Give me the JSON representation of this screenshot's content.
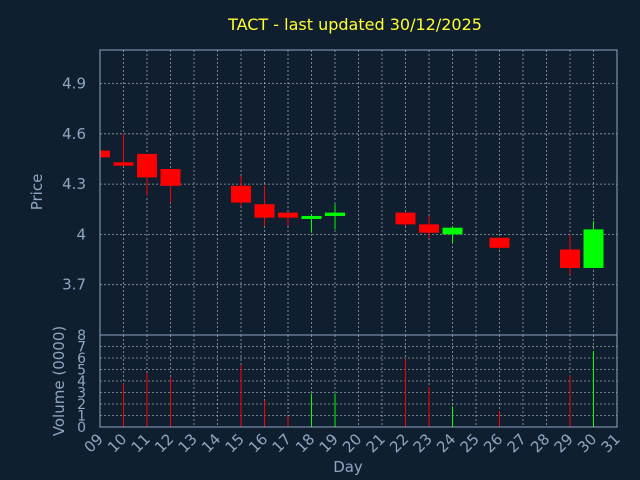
{
  "chart_data": {
    "type": "candlestick",
    "title": "TACT - last updated 30/12/2025",
    "xlabel": "Day",
    "price_panel": {
      "ylabel": "Price",
      "ylim": [
        3.4,
        5.1
      ],
      "yticks": [
        "3.7",
        "4",
        "4.3",
        "4.6",
        "4.9"
      ]
    },
    "volume_panel": {
      "ylabel": "Volume (0000)",
      "ylim": [
        0,
        8
      ],
      "yticks": [
        "0",
        "1",
        "2",
        "3",
        "4",
        "5",
        "6",
        "7",
        "8"
      ]
    },
    "x_ticks": [
      "09",
      "10",
      "11",
      "12",
      "13",
      "14",
      "15",
      "16",
      "17",
      "18",
      "19",
      "20",
      "21",
      "22",
      "23",
      "24",
      "25",
      "26",
      "27",
      "28",
      "29",
      "30",
      "31"
    ],
    "grid": true,
    "up_color": "#00ff00",
    "down_color": "#ff0000",
    "candles": [
      {
        "day": 9,
        "open": 4.5,
        "high": 4.51,
        "low": 4.46,
        "close": 4.46,
        "volume": 4.6
      },
      {
        "day": 10,
        "open": 4.43,
        "high": 4.6,
        "low": 4.41,
        "close": 4.41,
        "volume": 3.8
      },
      {
        "day": 11,
        "open": 4.48,
        "high": 4.48,
        "low": 4.23,
        "close": 4.34,
        "volume": 4.7
      },
      {
        "day": 12,
        "open": 4.39,
        "high": 4.39,
        "low": 4.19,
        "close": 4.29,
        "volume": 4.3
      },
      {
        "day": 15,
        "open": 4.29,
        "high": 4.35,
        "low": 4.17,
        "close": 4.19,
        "volume": 5.4
      },
      {
        "day": 16,
        "open": 4.18,
        "high": 4.29,
        "low": 4.05,
        "close": 4.1,
        "volume": 2.3
      },
      {
        "day": 17,
        "open": 4.13,
        "high": 4.13,
        "low": 4.05,
        "close": 4.1,
        "volume": 0.9
      },
      {
        "day": 18,
        "open": 4.1,
        "high": 4.12,
        "low": 4.01,
        "close": 4.11,
        "volume": 2.9
      },
      {
        "day": 19,
        "open": 4.11,
        "high": 4.18,
        "low": 4.03,
        "close": 4.13,
        "volume": 2.9
      },
      {
        "day": 22,
        "open": 4.13,
        "high": 4.13,
        "low": 4.05,
        "close": 4.06,
        "volume": 5.9
      },
      {
        "day": 23,
        "open": 4.06,
        "high": 4.11,
        "low": 3.98,
        "close": 4.01,
        "volume": 3.5
      },
      {
        "day": 24,
        "open": 4.0,
        "high": 4.05,
        "low": 3.95,
        "close": 4.04,
        "volume": 1.8
      },
      {
        "day": 26,
        "open": 3.98,
        "high": 3.98,
        "low": 3.91,
        "close": 3.92,
        "volume": 1.4
      },
      {
        "day": 29,
        "open": 3.91,
        "high": 4.0,
        "low": 3.76,
        "close": 3.8,
        "volume": 4.5
      },
      {
        "day": 30,
        "open": 3.8,
        "high": 4.08,
        "low": 3.8,
        "close": 4.03,
        "volume": 6.6
      }
    ]
  }
}
